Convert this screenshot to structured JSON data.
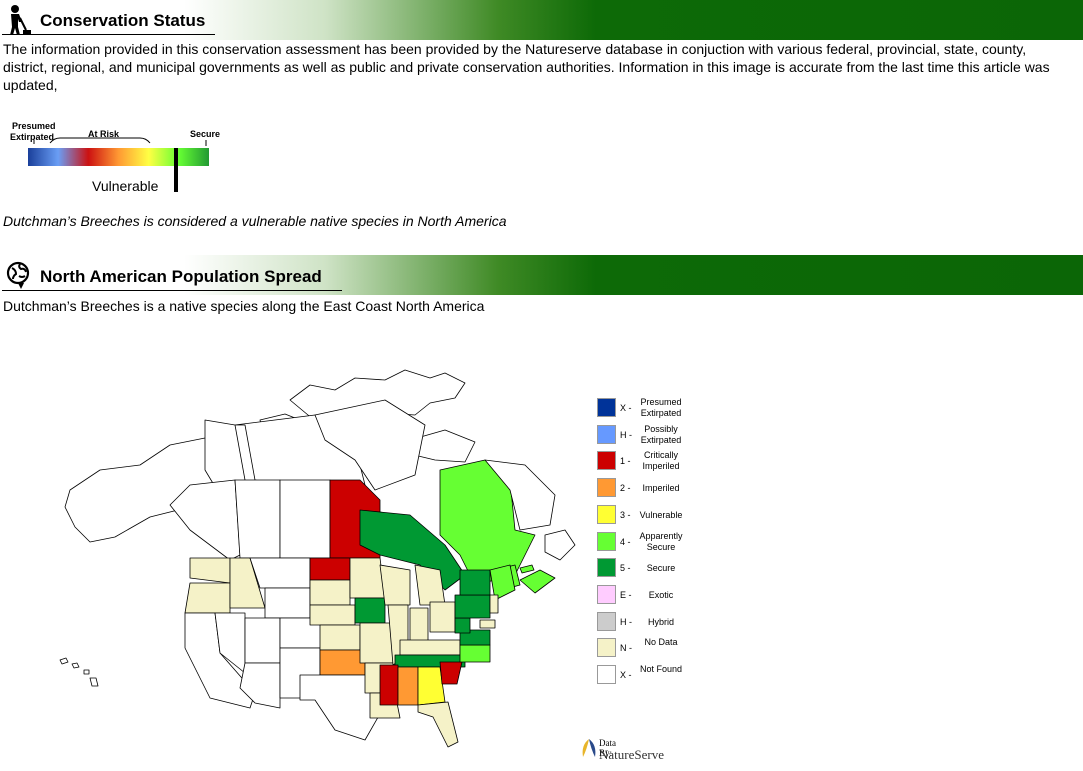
{
  "conservation": {
    "title": "Conservation Status",
    "intro": "The information provided in this conservation assessment has been provided by the Natureserve  database in conjuction with various federal, provincial, state, county, district, regional, and  municipal governments as well as public and private conservation authorities. Information in this image is accurate from the last time this article was updated,",
    "scale": {
      "label_presumed": "Presumed",
      "label_extirpated": "Extirpated",
      "label_at_risk": "At Risk",
      "label_secure": "Secure",
      "status": "Vulnerable",
      "status_position": 0.82,
      "colors": [
        "#1a3f9a",
        "#6a9ef5",
        "#cc1111",
        "#ff9933",
        "#ffff44",
        "#66ff33",
        "#229933"
      ]
    },
    "summary": "Dutchman’s Breeches is considered a vulnerable native species in North America"
  },
  "population": {
    "title": "North American Population Spread",
    "text": "Dutchman’s Breeches is a native species along the East Coast North America"
  },
  "legend": [
    {
      "code": "X -",
      "desc": "Presumed Extirpated",
      "color": "#003399"
    },
    {
      "code": "H -",
      "desc": "Possibly Extirpated",
      "color": "#6699ff"
    },
    {
      "code": "1 -",
      "desc": "Critically Imperiled",
      "color": "#cc0000"
    },
    {
      "code": "2 -",
      "desc": "Imperiled",
      "color": "#ff9933"
    },
    {
      "code": "3 -",
      "desc": "Vulnerable",
      "color": "#ffff33"
    },
    {
      "code": "4 -",
      "desc": "Apparently Secure",
      "color": "#66ff33"
    },
    {
      "code": "5 -",
      "desc": "Secure",
      "color": "#009933"
    },
    {
      "code": "E -",
      "desc": "Exotic",
      "color": "#ffccff"
    },
    {
      "code": "H -",
      "desc": "Hybrid",
      "color": "#cccccc"
    },
    {
      "code": "N -",
      "desc": "No Data",
      "color": "#f5f2c8"
    },
    {
      "code": "X -",
      "desc": "Not Found",
      "color": "#ffffff"
    }
  ],
  "credit": {
    "line1": "Data By:",
    "line2": "NatureServe"
  }
}
